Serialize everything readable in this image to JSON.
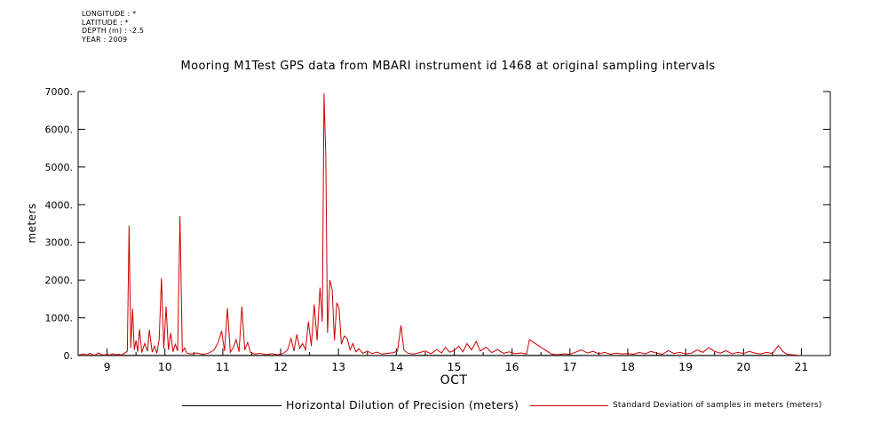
{
  "header": {
    "lines": [
      "LONGITUDE : *",
      "LATITUDE : *",
      "DEPTH (m) : -2.5",
      "YEAR : 2009"
    ]
  },
  "legend": {
    "items": [
      {
        "label": "Horizontal Dilution of Precision (meters)",
        "color": "#000000"
      },
      {
        "label": "Standard Deviation of samples in meters (meters)",
        "color": "#cc0000"
      }
    ]
  },
  "chart_data": {
    "type": "line",
    "title": "Mooring M1Test GPS data from MBARI instrument id 1468 at original sampling intervals",
    "xlabel": "OCT",
    "ylabel": "meters",
    "xlim": [
      8.5,
      21.5
    ],
    "ylim": [
      0,
      7000
    ],
    "xticks": [
      9,
      10,
      11,
      12,
      13,
      14,
      15,
      16,
      17,
      18,
      19,
      20,
      21
    ],
    "yticks": [
      0,
      1000,
      2000,
      3000,
      4000,
      5000,
      6000,
      7000
    ],
    "ytick_labels": [
      "0.",
      "1000.",
      "2000.",
      "3000.",
      "4000.",
      "5000.",
      "6000.",
      "7000."
    ],
    "grid": false,
    "legend_position": "bottom",
    "series": [
      {
        "name": "Horizontal Dilution of Precision (meters)",
        "color": "#000000",
        "points": [
          [
            8.5,
            4
          ],
          [
            9.5,
            5
          ],
          [
            10.5,
            4
          ],
          [
            11.5,
            5
          ],
          [
            12.5,
            5
          ],
          [
            13.5,
            4
          ],
          [
            14.5,
            5
          ],
          [
            15.5,
            4
          ],
          [
            16.5,
            5
          ],
          [
            17.5,
            4
          ],
          [
            18.5,
            5
          ],
          [
            19.5,
            4
          ],
          [
            20.5,
            5
          ],
          [
            20.95,
            4
          ]
        ]
      },
      {
        "name": "Standard Deviation of samples in meters (meters)",
        "color": "#cc0000",
        "points": [
          [
            8.5,
            15
          ],
          [
            8.6,
            40
          ],
          [
            8.65,
            10
          ],
          [
            8.7,
            60
          ],
          [
            8.75,
            20
          ],
          [
            8.8,
            15
          ],
          [
            8.85,
            70
          ],
          [
            8.9,
            25
          ],
          [
            8.95,
            15
          ],
          [
            9.0,
            30
          ],
          [
            9.05,
            15
          ],
          [
            9.1,
            50
          ],
          [
            9.15,
            20
          ],
          [
            9.2,
            35
          ],
          [
            9.25,
            15
          ],
          [
            9.3,
            60
          ],
          [
            9.35,
            120
          ],
          [
            9.38,
            3450
          ],
          [
            9.41,
            200
          ],
          [
            9.44,
            1250
          ],
          [
            9.47,
            150
          ],
          [
            9.5,
            400
          ],
          [
            9.53,
            100
          ],
          [
            9.56,
            700
          ],
          [
            9.6,
            80
          ],
          [
            9.65,
            320
          ],
          [
            9.7,
            120
          ],
          [
            9.73,
            680
          ],
          [
            9.78,
            90
          ],
          [
            9.82,
            250
          ],
          [
            9.86,
            60
          ],
          [
            9.9,
            420
          ],
          [
            9.94,
            2050
          ],
          [
            9.98,
            180
          ],
          [
            10.02,
            1300
          ],
          [
            10.06,
            150
          ],
          [
            10.1,
            600
          ],
          [
            10.14,
            100
          ],
          [
            10.18,
            300
          ],
          [
            10.22,
            120
          ],
          [
            10.26,
            3700
          ],
          [
            10.3,
            100
          ],
          [
            10.34,
            200
          ],
          [
            10.38,
            60
          ],
          [
            10.45,
            40
          ],
          [
            10.55,
            70
          ],
          [
            10.65,
            30
          ],
          [
            10.75,
            60
          ],
          [
            10.85,
            150
          ],
          [
            10.92,
            350
          ],
          [
            10.98,
            650
          ],
          [
            11.03,
            120
          ],
          [
            11.08,
            1250
          ],
          [
            11.13,
            90
          ],
          [
            11.18,
            200
          ],
          [
            11.23,
            420
          ],
          [
            11.28,
            100
          ],
          [
            11.33,
            1300
          ],
          [
            11.38,
            150
          ],
          [
            11.43,
            350
          ],
          [
            11.48,
            80
          ],
          [
            11.55,
            40
          ],
          [
            11.65,
            60
          ],
          [
            11.75,
            25
          ],
          [
            11.85,
            50
          ],
          [
            11.95,
            20
          ],
          [
            12.05,
            60
          ],
          [
            12.12,
            150
          ],
          [
            12.18,
            450
          ],
          [
            12.23,
            120
          ],
          [
            12.28,
            560
          ],
          [
            12.33,
            200
          ],
          [
            12.38,
            320
          ],
          [
            12.43,
            150
          ],
          [
            12.48,
            900
          ],
          [
            12.53,
            250
          ],
          [
            12.58,
            1350
          ],
          [
            12.63,
            400
          ],
          [
            12.68,
            1800
          ],
          [
            12.72,
            900
          ],
          [
            12.75,
            6950
          ],
          [
            12.78,
            5300
          ],
          [
            12.81,
            600
          ],
          [
            12.85,
            2000
          ],
          [
            12.89,
            1750
          ],
          [
            12.93,
            400
          ],
          [
            12.97,
            1400
          ],
          [
            13.01,
            1250
          ],
          [
            13.05,
            300
          ],
          [
            13.1,
            520
          ],
          [
            13.15,
            450
          ],
          [
            13.2,
            150
          ],
          [
            13.25,
            320
          ],
          [
            13.3,
            100
          ],
          [
            13.35,
            180
          ],
          [
            13.42,
            60
          ],
          [
            13.5,
            120
          ],
          [
            13.58,
            50
          ],
          [
            13.66,
            90
          ],
          [
            13.75,
            40
          ],
          [
            13.85,
            60
          ],
          [
            13.95,
            80
          ],
          [
            14.02,
            120
          ],
          [
            14.08,
            800
          ],
          [
            14.13,
            150
          ],
          [
            14.2,
            60
          ],
          [
            14.3,
            40
          ],
          [
            14.4,
            80
          ],
          [
            14.5,
            120
          ],
          [
            14.6,
            50
          ],
          [
            14.7,
            160
          ],
          [
            14.78,
            70
          ],
          [
            14.85,
            220
          ],
          [
            14.92,
            90
          ],
          [
            15.0,
            130
          ],
          [
            15.08,
            250
          ],
          [
            15.15,
            100
          ],
          [
            15.22,
            320
          ],
          [
            15.3,
            150
          ],
          [
            15.38,
            380
          ],
          [
            15.45,
            120
          ],
          [
            15.55,
            220
          ],
          [
            15.65,
            80
          ],
          [
            15.75,
            160
          ],
          [
            15.85,
            60
          ],
          [
            15.95,
            100
          ],
          [
            16.05,
            50
          ],
          [
            16.15,
            70
          ],
          [
            16.25,
            40
          ],
          [
            16.3,
            420
          ],
          [
            16.4,
            320
          ],
          [
            16.5,
            220
          ],
          [
            16.6,
            120
          ],
          [
            16.68,
            40
          ],
          [
            16.78,
            25
          ],
          [
            16.9,
            45
          ],
          [
            17.0,
            35
          ],
          [
            17.1,
            90
          ],
          [
            17.2,
            150
          ],
          [
            17.3,
            70
          ],
          [
            17.4,
            110
          ],
          [
            17.5,
            45
          ],
          [
            17.6,
            85
          ],
          [
            17.7,
            35
          ],
          [
            17.8,
            65
          ],
          [
            17.9,
            45
          ],
          [
            18.0,
            55
          ],
          [
            18.1,
            35
          ],
          [
            18.2,
            85
          ],
          [
            18.3,
            45
          ],
          [
            18.4,
            110
          ],
          [
            18.5,
            65
          ],
          [
            18.6,
            35
          ],
          [
            18.7,
            130
          ],
          [
            18.8,
            55
          ],
          [
            18.9,
            85
          ],
          [
            19.0,
            45
          ],
          [
            19.1,
            65
          ],
          [
            19.2,
            150
          ],
          [
            19.3,
            85
          ],
          [
            19.4,
            210
          ],
          [
            19.5,
            110
          ],
          [
            19.6,
            65
          ],
          [
            19.7,
            130
          ],
          [
            19.8,
            45
          ],
          [
            19.9,
            85
          ],
          [
            20.0,
            55
          ],
          [
            20.1,
            110
          ],
          [
            20.2,
            65
          ],
          [
            20.3,
            45
          ],
          [
            20.4,
            85
          ],
          [
            20.5,
            55
          ],
          [
            20.6,
            260
          ],
          [
            20.68,
            110
          ],
          [
            20.75,
            35
          ],
          [
            20.85,
            20
          ],
          [
            20.95,
            10
          ]
        ]
      }
    ]
  }
}
